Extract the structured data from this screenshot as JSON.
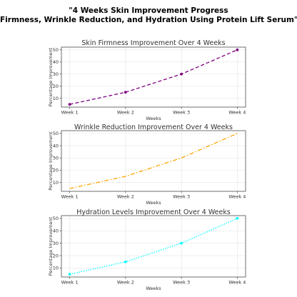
{
  "suptitle": {
    "line1": "\"4 Weeks Skin Improvement Progress",
    "line2": "Firmness, Wrinkle Reduction, and Hydration Using Protein Lift Serum\""
  },
  "chart_data": [
    {
      "type": "line",
      "title": "Skin Firmness Improvement Over 4 Weeks",
      "xlabel": "Weeks",
      "ylabel": "Percentage Improvement",
      "categories": [
        "Week 1",
        "Week 2",
        "Week 3",
        "Week 4"
      ],
      "values": [
        5,
        15,
        30,
        50
      ],
      "yticks": [
        10,
        20,
        30,
        40,
        50
      ],
      "ylim": [
        2.75,
        52.25
      ],
      "grid": true,
      "line_style": "dashed",
      "marker": "circle",
      "color": "#800080"
    },
    {
      "type": "line",
      "title": "Wrinkle Reduction Improvement Over 4 Weeks",
      "xlabel": "Weeks",
      "ylabel": "Percentage Improvement",
      "categories": [
        "Week 1",
        "Week 2",
        "Week 3",
        "Week 4"
      ],
      "values": [
        5,
        15,
        30,
        50
      ],
      "yticks": [
        10,
        20,
        30,
        40,
        50
      ],
      "ylim": [
        2.75,
        52.25
      ],
      "grid": true,
      "line_style": "dashdot",
      "marker": "none",
      "color": "#FFA500"
    },
    {
      "type": "line",
      "title": "Hydration Levels Improvement Over 4 Weeks",
      "xlabel": "Weeks",
      "ylabel": "Percentage Improvement",
      "categories": [
        "Week 1",
        "Week 2",
        "Week 3",
        "Week 4"
      ],
      "values": [
        5,
        15,
        30,
        50
      ],
      "yticks": [
        10,
        20,
        30,
        40,
        50
      ],
      "ylim": [
        2.75,
        52.25
      ],
      "grid": true,
      "line_style": "dotted",
      "marker": "circle",
      "color": "#00FFFF"
    }
  ]
}
